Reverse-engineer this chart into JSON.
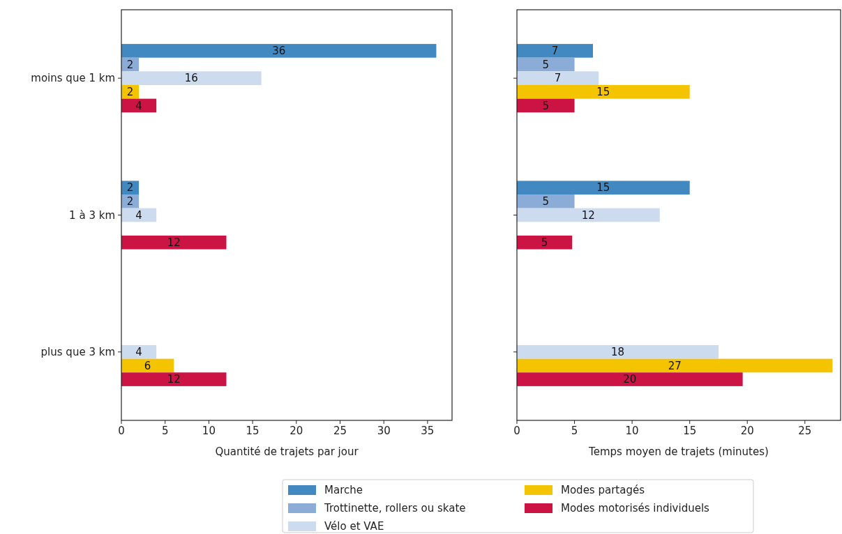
{
  "chart_data": [
    {
      "type": "bar",
      "orientation": "horizontal",
      "categories": [
        "moins que 1 km",
        "1 à 3 km",
        "plus que 3 km"
      ],
      "xlabel": "Quantité de trajets par jour",
      "xlim": [
        0,
        37.8
      ],
      "xticks": [
        0,
        5,
        10,
        15,
        20,
        25,
        30,
        35
      ],
      "data_labels": true,
      "legend": "bottom",
      "series": [
        {
          "name": "Marche",
          "color": "#4189c0",
          "values": [
            36,
            2,
            null
          ]
        },
        {
          "name": "Trottinette, rollers ou skate",
          "color": "#8aacd7",
          "values": [
            2,
            2,
            null
          ]
        },
        {
          "name": "Vélo et VAE",
          "color": "#cddbee",
          "values": [
            16,
            4,
            4
          ]
        },
        {
          "name": "Modes partagés",
          "color": "#f5c400",
          "values": [
            2,
            null,
            6
          ]
        },
        {
          "name": "Modes motorisés individuels",
          "color": "#cc1444",
          "values": [
            4,
            12,
            12
          ]
        }
      ]
    },
    {
      "type": "bar",
      "orientation": "horizontal",
      "categories": [
        null,
        null,
        null
      ],
      "xlabel": "Temps moyen de trajets (minutes)",
      "xlim": [
        0,
        28.1
      ],
      "xticks": [
        0,
        5,
        10,
        15,
        20,
        25
      ],
      "tick_labels": "x",
      "series": [
        {
          "color": "#4189c0",
          "values": [
            6.6,
            15,
            null
          ],
          "value_labels": [
            "7",
            "15",
            null
          ]
        },
        {
          "color": "#8aacd7",
          "values": [
            5,
            5,
            null
          ],
          "value_labels": [
            "5",
            "5",
            null
          ]
        },
        {
          "color": "#cddbee",
          "values": [
            7.1,
            12.4,
            17.5
          ],
          "value_labels": [
            "7",
            "12",
            "18"
          ]
        },
        {
          "color": "#f5c400",
          "values": [
            15,
            null,
            27.4
          ],
          "value_labels": [
            "15",
            null,
            "27"
          ]
        },
        {
          "color": "#cc1444",
          "values": [
            5,
            4.8,
            19.6
          ],
          "value_labels": [
            "5",
            "5",
            "20"
          ]
        }
      ]
    }
  ]
}
